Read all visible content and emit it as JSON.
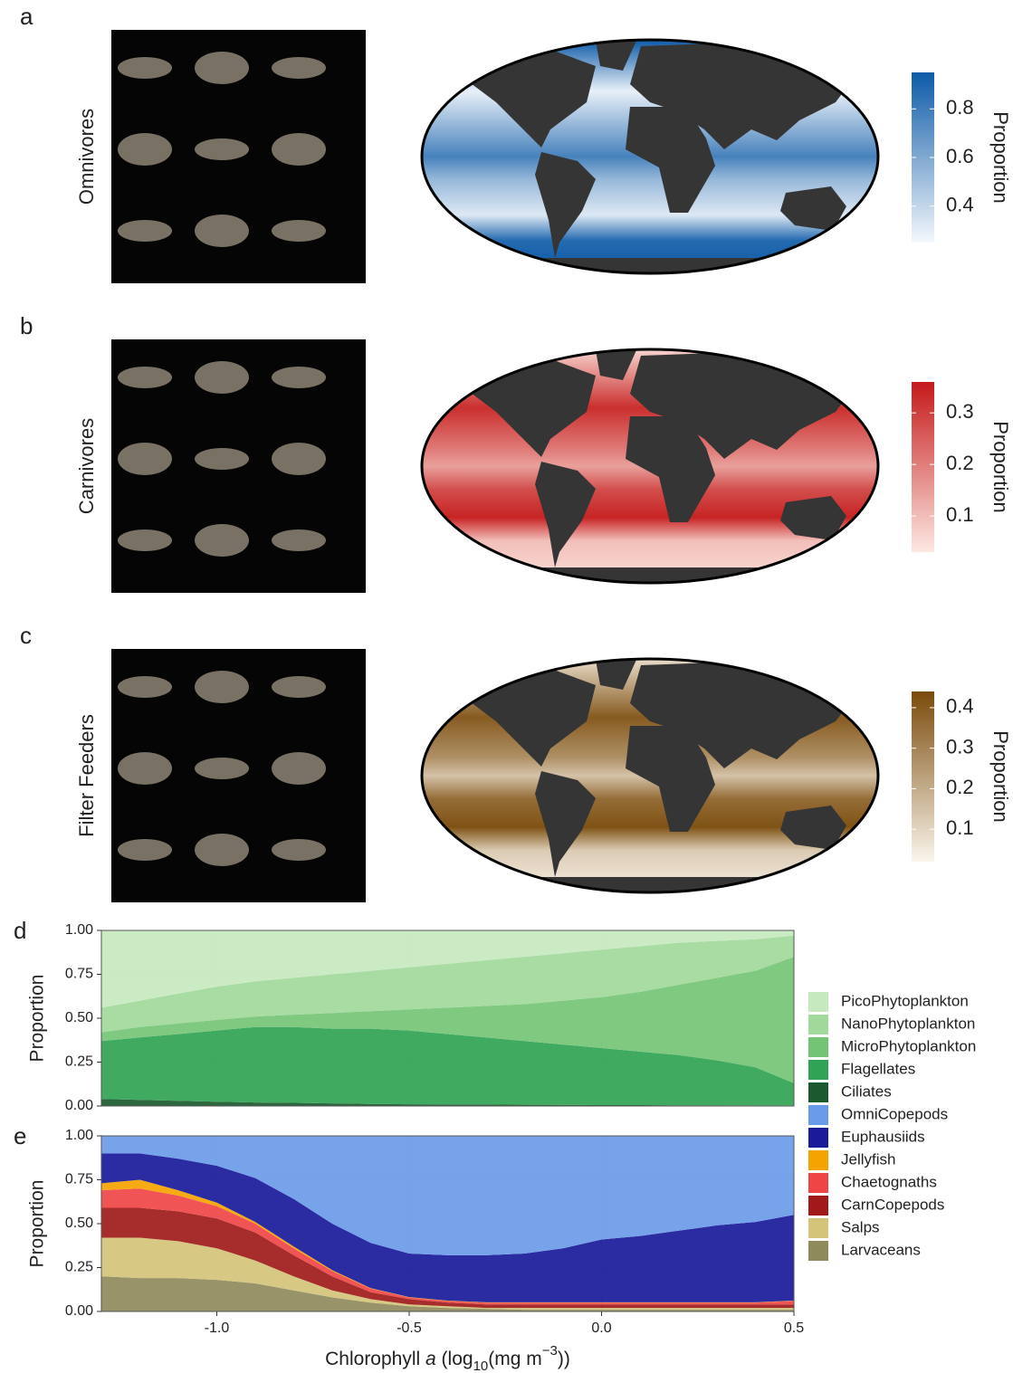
{
  "chart_data": [
    {
      "type": "map",
      "panel": "a",
      "label": "Omnivores",
      "colorbar_title": "Proportion",
      "colors": [
        "#f4f8fc",
        "#0d5aa7"
      ],
      "ylim": [
        0.25,
        0.95
      ],
      "yticks": [
        0.4,
        0.6,
        0.8
      ]
    },
    {
      "type": "map",
      "panel": "b",
      "label": "Carnivores",
      "colorbar_title": "Proportion",
      "colors": [
        "#fde8e2",
        "#c41a1a"
      ],
      "ylim": [
        0.03,
        0.36
      ],
      "yticks": [
        0.1,
        0.2,
        0.3
      ]
    },
    {
      "type": "map",
      "panel": "c",
      "label": "Filter Feeders",
      "colorbar_title": "Proportion",
      "colors": [
        "#fbf6ec",
        "#7a4a0a"
      ],
      "ylim": [
        0.02,
        0.44
      ],
      "yticks": [
        0.1,
        0.2,
        0.3,
        0.4
      ]
    },
    {
      "type": "area",
      "panel": "d",
      "y_label": "Proportion",
      "legend": "right",
      "grid": true,
      "x": [
        -1.3,
        -1.2,
        -1.1,
        -1.0,
        -0.9,
        -0.8,
        -0.7,
        -0.6,
        -0.5,
        -0.4,
        -0.3,
        -0.2,
        -0.1,
        0.0,
        0.1,
        0.2,
        0.3,
        0.4,
        0.5
      ],
      "xlim": [
        -1.3,
        0.5
      ],
      "ylim": [
        0,
        1
      ],
      "yticks": [
        {
          "value": 0,
          "label": "0.00"
        },
        {
          "value": 0.25,
          "label": "0.25"
        },
        {
          "value": 0.5,
          "label": "0.50"
        },
        {
          "value": 0.75,
          "label": "0.75"
        },
        {
          "value": 1,
          "label": "1.00"
        }
      ],
      "series": [
        {
          "name": "PicoPhytoplankton",
          "color": "#c7e9c0",
          "values": [
            0.44,
            0.4,
            0.36,
            0.32,
            0.29,
            0.27,
            0.25,
            0.23,
            0.21,
            0.19,
            0.17,
            0.15,
            0.13,
            0.11,
            0.09,
            0.07,
            0.06,
            0.05,
            0.03
          ]
        },
        {
          "name": "NanoPhytoplankton",
          "color": "#a1d99b",
          "values": [
            0.14,
            0.15,
            0.17,
            0.19,
            0.2,
            0.21,
            0.22,
            0.23,
            0.24,
            0.25,
            0.26,
            0.27,
            0.27,
            0.27,
            0.26,
            0.24,
            0.21,
            0.18,
            0.12
          ]
        },
        {
          "name": "MicroPhytoplankton",
          "color": "#74c476",
          "values": [
            0.05,
            0.06,
            0.06,
            0.06,
            0.06,
            0.07,
            0.09,
            0.1,
            0.12,
            0.15,
            0.18,
            0.21,
            0.25,
            0.29,
            0.34,
            0.4,
            0.47,
            0.55,
            0.72
          ]
        },
        {
          "name": "Flagellates",
          "color": "#31a354",
          "values": [
            0.33,
            0.355,
            0.38,
            0.405,
            0.43,
            0.432,
            0.425,
            0.428,
            0.42,
            0.401,
            0.382,
            0.363,
            0.344,
            0.325,
            0.305,
            0.286,
            0.256,
            0.217,
            0.127
          ]
        },
        {
          "name": "Ciliates",
          "color": "#1b5a2e",
          "values": [
            0.04,
            0.035,
            0.03,
            0.025,
            0.02,
            0.018,
            0.015,
            0.012,
            0.01,
            0.009,
            0.008,
            0.007,
            0.006,
            0.005,
            0.005,
            0.004,
            0.004,
            0.003,
            0.003
          ]
        }
      ]
    },
    {
      "type": "area",
      "panel": "e",
      "y_label": "Proportion",
      "legend": "right",
      "grid": true,
      "x_label": [
        "Chlorophyll ",
        "a",
        " (log",
        "10",
        "(mg m",
        "−3",
        "))"
      ],
      "x": [
        -1.3,
        -1.2,
        -1.1,
        -1.0,
        -0.9,
        -0.8,
        -0.7,
        -0.6,
        -0.5,
        -0.4,
        -0.3,
        -0.2,
        -0.1,
        0.0,
        0.1,
        0.2,
        0.3,
        0.4,
        0.5
      ],
      "xlim": [
        -1.3,
        0.5
      ],
      "ylim": [
        0,
        1
      ],
      "xticks": [
        {
          "value": -1.0,
          "label": "-1.0"
        },
        {
          "value": -0.5,
          "label": "-0.5"
        },
        {
          "value": 0.0,
          "label": "0.0"
        },
        0.5
      ],
      "yticks": [
        {
          "value": 0,
          "label": "0.00"
        },
        {
          "value": 0.25,
          "label": "0.25"
        },
        {
          "value": 0.5,
          "label": "0.50"
        },
        {
          "value": 0.75,
          "label": "0.75"
        },
        {
          "value": 1,
          "label": "1.00"
        }
      ],
      "series": [
        {
          "name": "OmniCopepods",
          "color": "#6a9be8",
          "values": [
            0.1,
            0.1,
            0.13,
            0.17,
            0.24,
            0.36,
            0.5,
            0.61,
            0.67,
            0.68,
            0.68,
            0.67,
            0.64,
            0.59,
            0.57,
            0.54,
            0.51,
            0.49,
            0.45
          ]
        },
        {
          "name": "Euphausiids",
          "color": "#1a1a9a",
          "values": [
            0.17,
            0.15,
            0.18,
            0.21,
            0.25,
            0.27,
            0.265,
            0.257,
            0.248,
            0.258,
            0.268,
            0.278,
            0.308,
            0.358,
            0.378,
            0.408,
            0.438,
            0.458,
            0.488
          ]
        },
        {
          "name": "Jellyfish",
          "color": "#f5a300",
          "values": [
            0.04,
            0.05,
            0.03,
            0.02,
            0.01,
            0.01,
            0.005,
            0.003,
            0.002,
            0.002,
            0.002,
            0.002,
            0.002,
            0.002,
            0.002,
            0.002,
            0.002,
            0.002,
            0.002
          ]
        },
        {
          "name": "Chaetognaths",
          "color": "#f04545",
          "values": [
            0.1,
            0.11,
            0.09,
            0.07,
            0.05,
            0.04,
            0.03,
            0.02,
            0.01,
            0.01,
            0.01,
            0.01,
            0.01,
            0.01,
            0.01,
            0.01,
            0.01,
            0.01,
            0.02
          ]
        },
        {
          "name": "CarnCopepods",
          "color": "#a01a1a",
          "values": [
            0.17,
            0.17,
            0.17,
            0.17,
            0.16,
            0.12,
            0.08,
            0.04,
            0.03,
            0.02,
            0.02,
            0.02,
            0.02,
            0.02,
            0.02,
            0.02,
            0.02,
            0.02,
            0.02
          ]
        },
        {
          "name": "Salps",
          "color": "#d4c47a",
          "values": [
            0.22,
            0.23,
            0.21,
            0.18,
            0.13,
            0.08,
            0.04,
            0.02,
            0.01,
            0.01,
            0.005,
            0.01,
            0.01,
            0.01,
            0.01,
            0.01,
            0.01,
            0.01,
            0.01
          ]
        },
        {
          "name": "Larvaceans",
          "color": "#8f8a5c",
          "values": [
            0.2,
            0.19,
            0.19,
            0.18,
            0.16,
            0.12,
            0.08,
            0.05,
            0.03,
            0.02,
            0.015,
            0.01,
            0.01,
            0.01,
            0.01,
            0.01,
            0.01,
            0.01,
            0.01
          ]
        }
      ]
    }
  ]
}
